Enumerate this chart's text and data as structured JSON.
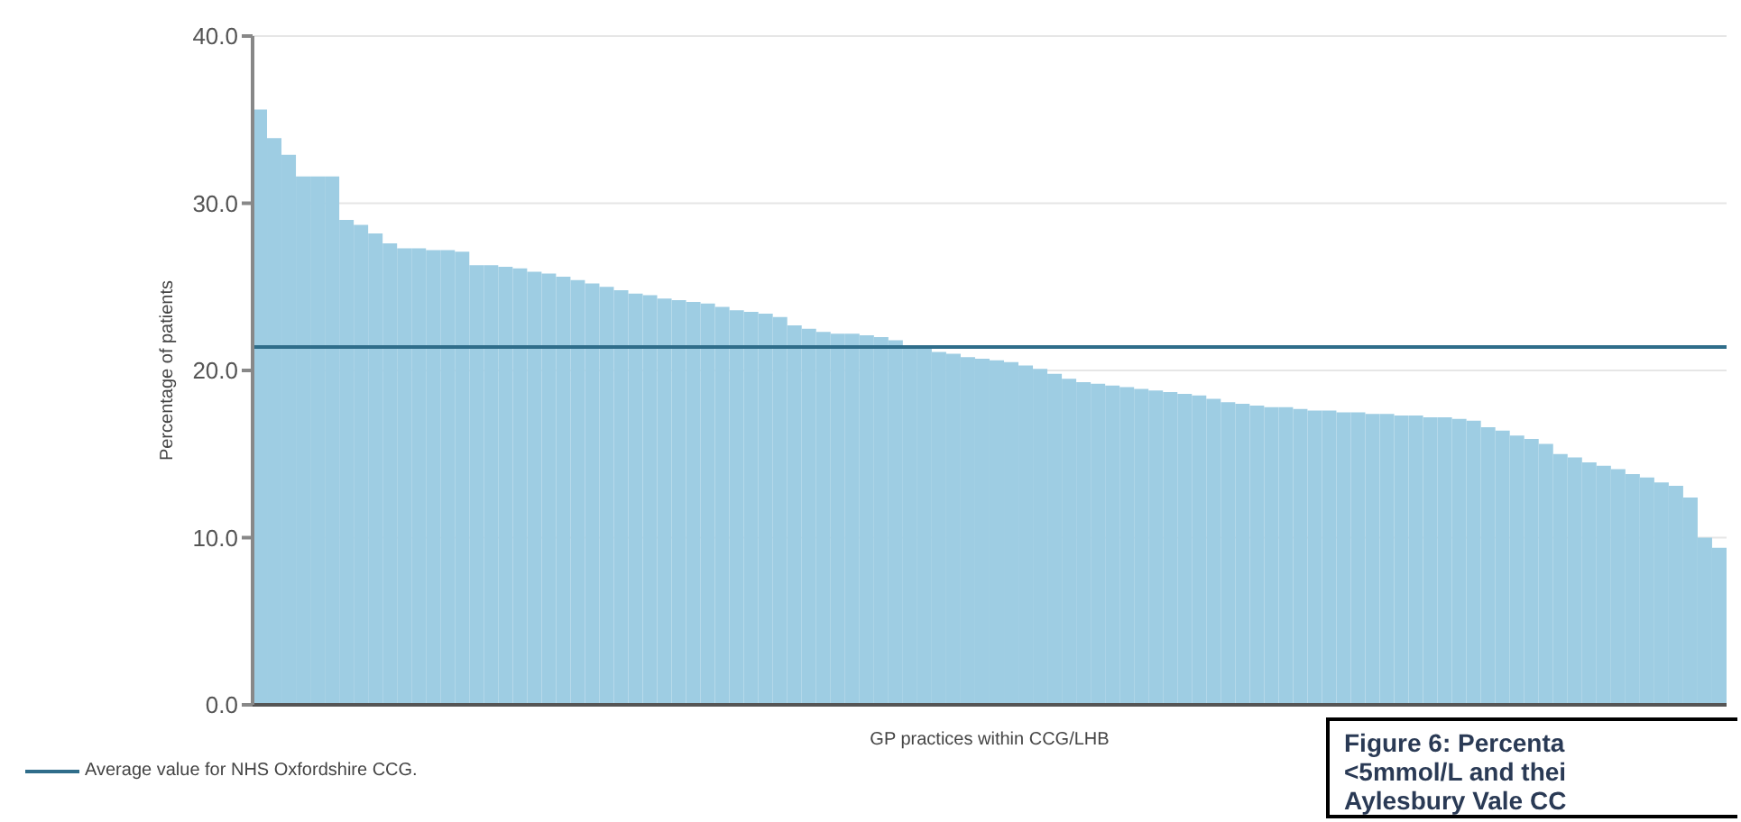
{
  "chart_data": {
    "type": "bar",
    "xlabel": "GP practices within CCG/LHB",
    "ylabel": "Percentage of patients",
    "categories": [
      null,
      null,
      null,
      null,
      null,
      null,
      null,
      null,
      null,
      null,
      null,
      null,
      null,
      null,
      null,
      null,
      null,
      null,
      null,
      null,
      null,
      null,
      null,
      null,
      null,
      null,
      null,
      null,
      null,
      null,
      null,
      null,
      null,
      null,
      null,
      null,
      null,
      null,
      null,
      null,
      null,
      null,
      null,
      null,
      null,
      null,
      null,
      null,
      null,
      null,
      null,
      null,
      null,
      null,
      null,
      null,
      null,
      null,
      null,
      null,
      null,
      null,
      null,
      null,
      null,
      null,
      null,
      null,
      null,
      null,
      null,
      null,
      null,
      null,
      null,
      null,
      null,
      null,
      null,
      null,
      null,
      null,
      null,
      null,
      null,
      null,
      null,
      null,
      null,
      null,
      null,
      null,
      null,
      null,
      null,
      null,
      null,
      null,
      null,
      null,
      null,
      null
    ],
    "values": [
      35.6,
      33.9,
      32.9,
      31.6,
      31.6,
      31.6,
      29.0,
      28.7,
      28.2,
      27.6,
      27.3,
      27.3,
      27.2,
      27.2,
      27.1,
      26.3,
      26.3,
      26.2,
      26.1,
      25.9,
      25.8,
      25.6,
      25.4,
      25.2,
      25.0,
      24.8,
      24.6,
      24.5,
      24.3,
      24.2,
      24.1,
      24.0,
      23.8,
      23.6,
      23.5,
      23.4,
      23.2,
      22.7,
      22.5,
      22.3,
      22.2,
      22.2,
      22.1,
      22.0,
      21.8,
      21.5,
      21.3,
      21.1,
      21.0,
      20.8,
      20.7,
      20.6,
      20.5,
      20.3,
      20.1,
      19.8,
      19.5,
      19.3,
      19.2,
      19.1,
      19.0,
      18.9,
      18.8,
      18.7,
      18.6,
      18.5,
      18.3,
      18.1,
      18.0,
      17.9,
      17.8,
      17.8,
      17.7,
      17.6,
      17.6,
      17.5,
      17.5,
      17.4,
      17.4,
      17.3,
      17.3,
      17.2,
      17.2,
      17.1,
      17.0,
      16.6,
      16.4,
      16.1,
      15.9,
      15.6,
      15.0,
      14.8,
      14.5,
      14.3,
      14.1,
      13.8,
      13.6,
      13.3,
      13.1,
      12.4,
      10.0,
      9.4
    ],
    "color": "#9ecde3",
    "ylim": [
      0,
      40
    ],
    "yticks": [
      {
        "value": 0,
        "label": "0.0"
      },
      {
        "value": 10,
        "label": "10.0"
      },
      {
        "value": 20,
        "label": "20.0"
      },
      {
        "value": 30,
        "label": "30.0"
      },
      {
        "value": 40,
        "label": "40.0"
      }
    ],
    "grid": "y",
    "ref_lines": [
      {
        "axis": "y",
        "value": 21.4,
        "label": "Average value for NHS Oxfordshire CCG.",
        "color": "#2f6d8a",
        "line_style": "solid"
      }
    ],
    "legend": "bottom left",
    "annotations": [
      "Figure 6: Percenta\n<5mmol/L and thei\nAylesbury Vale CC"
    ]
  }
}
